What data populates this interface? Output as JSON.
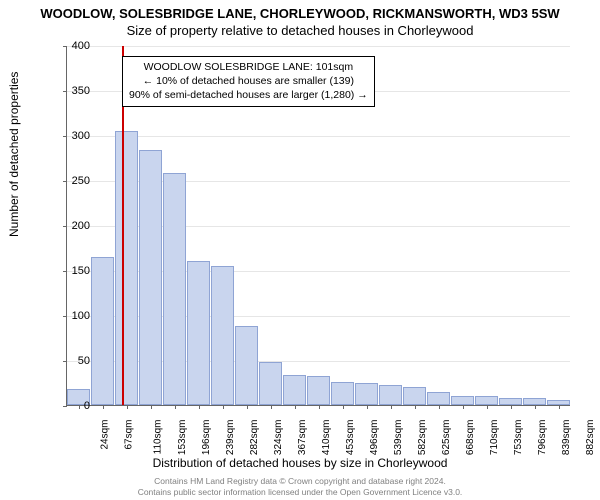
{
  "title_main": "WOODLOW, SOLESBRIDGE LANE, CHORLEYWOOD, RICKMANSWORTH, WD3 5SW",
  "title_sub": "Size of property relative to detached houses in Chorleywood",
  "y_axis_label": "Number of detached properties",
  "x_axis_label": "Distribution of detached houses by size in Chorleywood",
  "annotation": {
    "line1": "WOODLOW SOLESBRIDGE LANE: 101sqm",
    "line2": "← 10% of detached houses are smaller (139)",
    "line3": "90% of semi-detached houses are larger (1,280) →"
  },
  "footer": {
    "line1": "Contains HM Land Registry data © Crown copyright and database right 2024.",
    "line2": "Contains public sector information licensed under the Open Government Licence v3.0."
  },
  "chart": {
    "type": "histogram",
    "ylim": [
      0,
      400
    ],
    "ytick_step": 50,
    "marker_value": 101,
    "marker_color": "#cc0000",
    "bar_fill": "#c9d5ee",
    "bar_border": "#8fa4d4",
    "grid_color": "#e6e6e6",
    "background_color": "#ffffff",
    "x_categories": [
      "24sqm",
      "67sqm",
      "110sqm",
      "153sqm",
      "196sqm",
      "239sqm",
      "282sqm",
      "324sqm",
      "367sqm",
      "410sqm",
      "453sqm",
      "496sqm",
      "539sqm",
      "582sqm",
      "625sqm",
      "668sqm",
      "710sqm",
      "753sqm",
      "796sqm",
      "839sqm",
      "882sqm"
    ],
    "values": [
      18,
      165,
      305,
      283,
      258,
      160,
      155,
      88,
      48,
      33,
      32,
      26,
      25,
      22,
      20,
      14,
      10,
      10,
      8,
      8,
      6
    ]
  }
}
